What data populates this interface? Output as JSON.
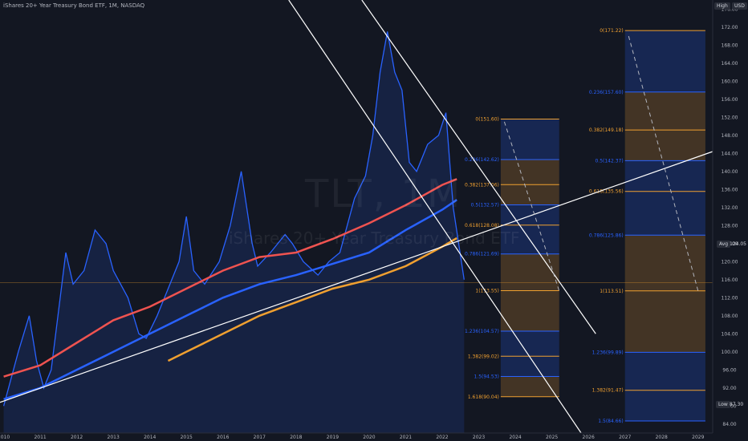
{
  "title": "iShares 20+ Year Treasury Bond ETF, 1M, NASDAQ",
  "watermark": {
    "symbol": "TLT, 1M",
    "name": "iShares 20+ Year Treasury Bond ETF"
  },
  "badges": {
    "high": "High",
    "currency": "USD",
    "avg_label": "Avg",
    "avg_value": "124.05",
    "low_label": "Low",
    "low_value": "87.30"
  },
  "colors": {
    "background": "#131722",
    "price": "#2962ff",
    "ma_red": "#ef5350",
    "ma_blue": "#2962ff",
    "ma_orange": "#f0a030",
    "fib_orange": "#f0a030",
    "fib_blue": "#2962ff",
    "trend": "#ffffff"
  },
  "chart_data": {
    "type": "line",
    "title": "iShares 20+ Year Treasury Bond ETF, 1M, NASDAQ",
    "xlabel": "",
    "ylabel": "",
    "xlim": [
      2009.9,
      2029.4
    ],
    "ylim": [
      82,
      178
    ],
    "x_ticks": [
      "2010",
      "2011",
      "2012",
      "2013",
      "2014",
      "2015",
      "2016",
      "2017",
      "2018",
      "2019",
      "2020",
      "2021",
      "2022",
      "2023",
      "2024",
      "2025",
      "2026",
      "2027",
      "2028",
      "2029"
    ],
    "y_ticks": [
      84,
      88,
      92,
      96,
      100,
      104,
      108,
      112,
      116,
      120,
      124,
      128,
      132,
      136,
      140,
      144,
      148,
      152,
      156,
      160,
      164,
      168,
      172,
      176
    ],
    "grid": false,
    "series": [
      {
        "role": "price",
        "x": [
          2010.0,
          2010.4,
          2010.7,
          2010.9,
          2011.1,
          2011.3,
          2011.7,
          2011.9,
          2012.2,
          2012.5,
          2012.8,
          2013.0,
          2013.4,
          2013.7,
          2013.9,
          2014.2,
          2014.5,
          2014.8,
          2015.0,
          2015.2,
          2015.5,
          2015.9,
          2016.2,
          2016.5,
          2016.8,
          2016.95,
          2017.3,
          2017.7,
          2017.9,
          2018.2,
          2018.6,
          2018.9,
          2019.2,
          2019.4,
          2019.6,
          2019.9,
          2020.1,
          2020.3,
          2020.5,
          2020.7,
          2020.9,
          2021.1,
          2021.3,
          2021.6,
          2021.9,
          2022.1,
          2022.3,
          2022.6
        ],
        "y": [
          88,
          100,
          108,
          98,
          92,
          96,
          122,
          115,
          118,
          127,
          124,
          118,
          112,
          104,
          103,
          108,
          114,
          120,
          130,
          118,
          115,
          120,
          128,
          140,
          124,
          119,
          122,
          126,
          124,
          120,
          117,
          120,
          122,
          128,
          134,
          139,
          148,
          162,
          171,
          162,
          158,
          142,
          140,
          146,
          148,
          153,
          132,
          116
        ]
      },
      {
        "role": "ma_red",
        "x": [
          2010.0,
          2011.0,
          2012.0,
          2013.0,
          2014.0,
          2015.0,
          2016.0,
          2017.0,
          2018.0,
          2019.0,
          2020.0,
          2021.0,
          2022.0,
          2022.4
        ],
        "y": [
          94.5,
          97,
          102,
          107,
          110,
          114,
          118,
          121,
          122,
          125,
          128.5,
          132.5,
          137,
          138.3
        ]
      },
      {
        "role": "ma_blue",
        "x": [
          2010.0,
          2011.0,
          2012.0,
          2013.0,
          2014.0,
          2015.0,
          2016.0,
          2017.0,
          2018.0,
          2019.0,
          2020.0,
          2021.0,
          2022.0,
          2022.4
        ],
        "y": [
          89.5,
          92,
          96,
          100,
          104,
          108,
          112,
          115,
          117,
          119.5,
          122,
          127,
          131.5,
          133.7
        ]
      },
      {
        "role": "ma_orange",
        "x": [
          2014.5,
          2015.0,
          2016.0,
          2017.0,
          2018.0,
          2019.0,
          2020.0,
          2021.0,
          2022.0,
          2022.4
        ],
        "y": [
          98,
          100,
          104,
          108,
          111,
          114,
          116,
          119,
          123.3,
          125.2
        ]
      }
    ],
    "fib_left": [
      {
        "label": "0(151.60)",
        "value": 151.6
      },
      {
        "label": "0.236(142.62)",
        "value": 142.62
      },
      {
        "label": "0.382(137.06)",
        "value": 137.06
      },
      {
        "label": "0.5(132.57)",
        "value": 132.57
      },
      {
        "label": "0.618(128.08)",
        "value": 128.08
      },
      {
        "label": "0.786(121.69)",
        "value": 121.69
      },
      {
        "label": "1(113.55)",
        "value": 113.55
      },
      {
        "label": "1.236(104.57)",
        "value": 104.57
      },
      {
        "label": "1.382(99.02)",
        "value": 99.02
      },
      {
        "label": "1.5(94.53)",
        "value": 94.53
      },
      {
        "label": "1.618(90.04)",
        "value": 90.04
      }
    ],
    "fib_right": [
      {
        "label": "0(171.22)",
        "value": 171.22
      },
      {
        "label": "0.236(157.60)",
        "value": 157.6
      },
      {
        "label": "0.382(149.18)",
        "value": 149.18
      },
      {
        "label": "0.5(142.37)",
        "value": 142.37
      },
      {
        "label": "0.618(135.56)",
        "value": 135.56
      },
      {
        "label": "0.786(125.86)",
        "value": 125.86
      },
      {
        "label": "1(113.51)",
        "value": 113.51
      },
      {
        "label": "1.236(99.89)",
        "value": 99.89
      },
      {
        "label": "1.382(91.47)",
        "value": 91.47
      },
      {
        "label": "1.5(84.66)",
        "value": 84.66
      }
    ],
    "trendlines": [
      {
        "x": [
          2009.9,
          2029.4
        ],
        "y": [
          88.8,
          144.4
        ]
      },
      {
        "x": [
          2017.8,
          2025.8
        ],
        "y": [
          178.0,
          82.0
        ]
      },
      {
        "x": [
          2019.8,
          2026.2
        ],
        "y": [
          178.0,
          104.0
        ]
      }
    ],
    "reference_line": 115.3
  }
}
